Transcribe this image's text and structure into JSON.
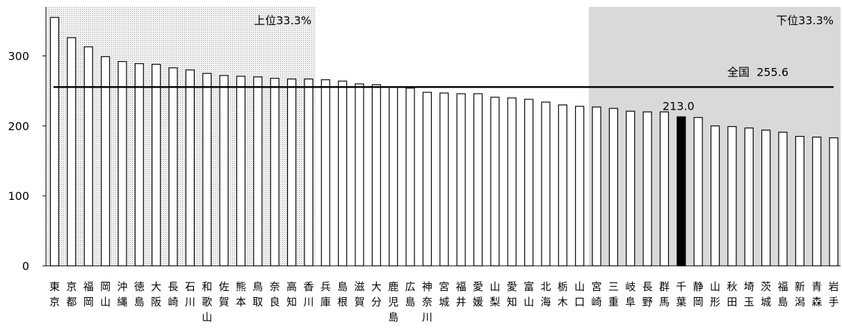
{
  "chart_data": {
    "type": "bar",
    "categories": [
      "東京",
      "京都",
      "福岡",
      "岡山",
      "沖縄",
      "徳島",
      "大阪",
      "長崎",
      "石川",
      "和歌山",
      "佐賀",
      "熊本",
      "鳥取",
      "奈良",
      "高知",
      "香川",
      "兵庫",
      "島根",
      "滋賀",
      "大分",
      "鹿児島",
      "広島",
      "神奈川",
      "宮城",
      "福井",
      "愛媛",
      "山梨",
      "愛知",
      "富山",
      "北海",
      "栃木",
      "山口",
      "宮崎",
      "三重",
      "岐阜",
      "長野",
      "群馬",
      "千葉",
      "静岡",
      "山形",
      "秋田",
      "埼玉",
      "茨城",
      "福島",
      "新潟",
      "青森",
      "岩手"
    ],
    "values": [
      355,
      326,
      313,
      299,
      292,
      289,
      288,
      283,
      280,
      275,
      272,
      271,
      270,
      268,
      267,
      267,
      266,
      264,
      260,
      259,
      255,
      254,
      248,
      247,
      246,
      246,
      241,
      240,
      238,
      234,
      230,
      228,
      227,
      225,
      221,
      220,
      220,
      213,
      212,
      200,
      199,
      197,
      194,
      191,
      185,
      184,
      183
    ],
    "highlight_category": "千葉",
    "highlight_value_label": "213.0",
    "ylim": [
      0,
      370
    ],
    "yticks": [
      0,
      100,
      200,
      300
    ],
    "ytick_labels": [
      "0",
      "100",
      "200",
      "300"
    ],
    "reference_line": {
      "label": "全国",
      "value": 255.6,
      "value_label": "255.6"
    },
    "upper_band_label": "上位33.3%",
    "lower_band_label": "下位33.3%",
    "upper_band_count": 16,
    "lower_band_count": 15,
    "colors": {
      "bar": "#ffffff",
      "bar_outline": "#000000",
      "highlight": "#000000",
      "lower_band": "#d9d9d9",
      "upper_band_dot": "#9a9a9a"
    }
  }
}
